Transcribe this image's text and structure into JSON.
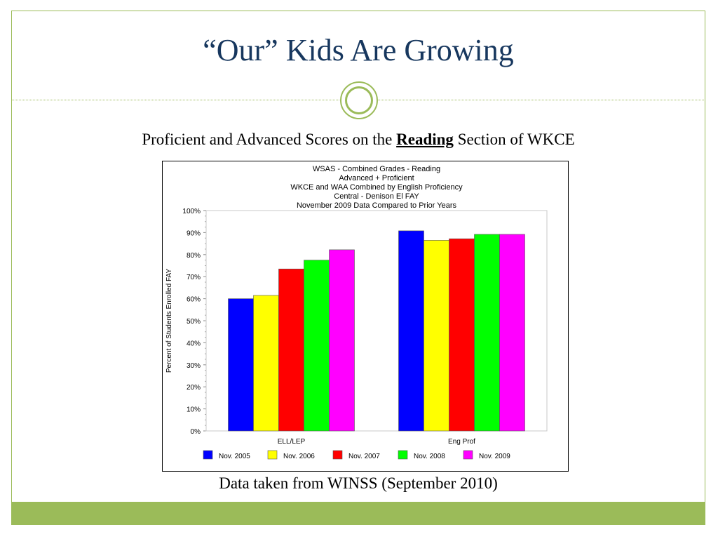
{
  "slide": {
    "title": "“Our” Kids Are Growing",
    "subtitle_before": "Proficient and Advanced Scores on the ",
    "subtitle_emphasis": "Reading",
    "subtitle_after": " Section of WKCE",
    "source_note": "Data taken from WINSS (September 2010)"
  },
  "colors": {
    "accent": "#9bbb59",
    "title": "#17375e"
  },
  "chart_data": {
    "type": "bar",
    "title_lines": [
      "WSAS - Combined Grades - Reading",
      "Advanced + Proficient",
      "WKCE and WAA Combined by English Proficiency",
      "Central - Denison El FAY",
      "November 2009 Data  Compared to Prior Years"
    ],
    "ylabel": "Percent of Students Enrolled FAY",
    "xlabel": "",
    "ylim": [
      0,
      100
    ],
    "yticks": [
      "0%",
      "10%",
      "20%",
      "30%",
      "40%",
      "50%",
      "60%",
      "70%",
      "80%",
      "90%",
      "100%"
    ],
    "categories": [
      "ELL/LEP",
      "Eng Prof"
    ],
    "series": [
      {
        "name": "Nov. 2005",
        "color": "#0000ff",
        "values": [
          60,
          90.8
        ]
      },
      {
        "name": "Nov. 2006",
        "color": "#ffff00",
        "values": [
          61.5,
          86.5
        ]
      },
      {
        "name": "Nov. 2007",
        "color": "#ff0000",
        "values": [
          73.5,
          87.2
        ]
      },
      {
        "name": "Nov. 2008",
        "color": "#00ff00",
        "values": [
          77.5,
          89.2
        ]
      },
      {
        "name": "Nov. 2009",
        "color": "#ff00ff",
        "values": [
          82.2,
          89.2
        ]
      }
    ],
    "legend_position": "bottom",
    "grid": false
  }
}
